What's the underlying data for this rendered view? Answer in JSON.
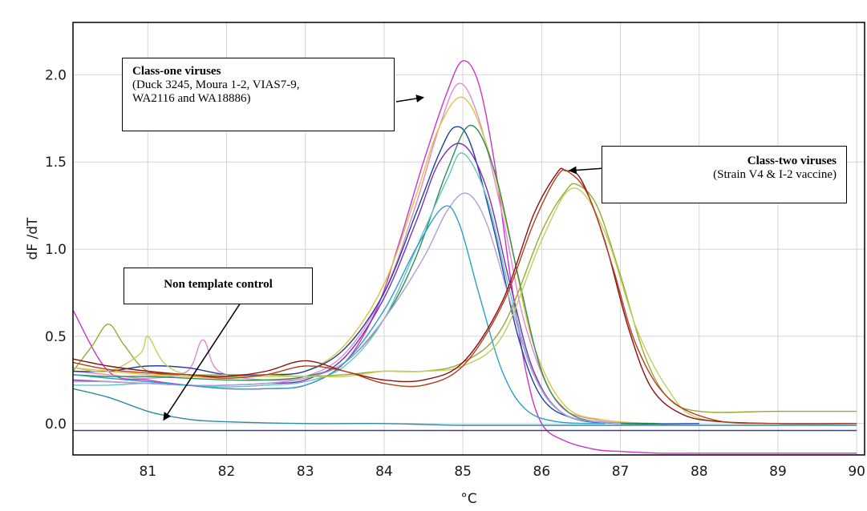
{
  "chart_data": {
    "type": "line",
    "xlabel": "°C",
    "ylabel": "dF /dT",
    "xlim": [
      80.05,
      90.1
    ],
    "ylim": [
      -0.18,
      2.3
    ],
    "xticks": [
      81,
      82,
      83,
      84,
      85,
      86,
      87,
      88,
      89,
      90
    ],
    "yticks": [
      0.0,
      0.5,
      1.0,
      1.5,
      2.0
    ],
    "xtick_labels": [
      "81",
      "82",
      "83",
      "84",
      "85",
      "86",
      "87",
      "88",
      "89",
      "90"
    ],
    "ytick_labels": [
      "0.0",
      "0.5",
      "1.0",
      "1.5",
      "2.0"
    ],
    "grid": true,
    "series": [
      {
        "color": "#cc33cc",
        "x": [
          80.05,
          80.5,
          81,
          81.5,
          82,
          82.5,
          83,
          83.5,
          83.9,
          84.2,
          84.5,
          84.8,
          85.0,
          85.2,
          85.4,
          85.6,
          85.8,
          86.0,
          86.3,
          86.7,
          87.0,
          87.5,
          88,
          89,
          90
        ],
        "y": [
          0.65,
          0.3,
          0.25,
          0.22,
          0.2,
          0.2,
          0.22,
          0.35,
          0.65,
          1.05,
          1.5,
          1.9,
          2.08,
          1.95,
          1.5,
          0.85,
          0.3,
          0.0,
          -0.1,
          -0.15,
          -0.16,
          -0.17,
          -0.17,
          -0.17,
          -0.17
        ]
      },
      {
        "color": "#e08ad4",
        "x": [
          80.05,
          80.5,
          81,
          81.5,
          81.7,
          81.9,
          82.5,
          83,
          83.5,
          84,
          84.4,
          84.7,
          84.95,
          85.2,
          85.5,
          85.8,
          86.2,
          86.7,
          87.2
        ],
        "y": [
          0.3,
          0.28,
          0.26,
          0.3,
          0.48,
          0.3,
          0.25,
          0.27,
          0.4,
          0.75,
          1.25,
          1.7,
          1.95,
          1.75,
          1.2,
          0.55,
          0.12,
          0.02,
          0.0
        ]
      },
      {
        "color": "#e0c040",
        "x": [
          80.05,
          80.5,
          81,
          81.5,
          82,
          82.5,
          83,
          83.5,
          84,
          84.4,
          84.7,
          85.0,
          85.3,
          85.6,
          85.9,
          86.3,
          86.8,
          87.5
        ],
        "y": [
          0.32,
          0.3,
          0.28,
          0.27,
          0.26,
          0.28,
          0.3,
          0.45,
          0.8,
          1.3,
          1.7,
          1.87,
          1.6,
          1.05,
          0.45,
          0.1,
          0.02,
          0.0
        ]
      },
      {
        "color": "#1f3fa0",
        "x": [
          80.05,
          80.5,
          81,
          81.5,
          82,
          82.5,
          83,
          83.5,
          84,
          84.4,
          84.7,
          84.9,
          85.1,
          85.4,
          85.7,
          86.0,
          86.4,
          87,
          88
        ],
        "y": [
          0.3,
          0.3,
          0.33,
          0.32,
          0.28,
          0.28,
          0.3,
          0.43,
          0.75,
          1.2,
          1.55,
          1.7,
          1.6,
          1.1,
          0.5,
          0.15,
          0.03,
          0.0,
          0.0
        ]
      },
      {
        "color": "#2e8b57",
        "x": [
          80.05,
          80.5,
          81,
          81.5,
          82,
          82.5,
          83,
          83.5,
          84,
          84.4,
          84.8,
          85.1,
          85.4,
          85.7,
          86.0,
          86.3,
          86.7,
          87.5
        ],
        "y": [
          0.28,
          0.27,
          0.27,
          0.26,
          0.25,
          0.25,
          0.27,
          0.35,
          0.6,
          0.95,
          1.45,
          1.71,
          1.45,
          0.85,
          0.3,
          0.08,
          0.01,
          0.0
        ]
      },
      {
        "color": "#7a2fb0",
        "x": [
          80.05,
          80.5,
          81,
          81.5,
          82,
          82.5,
          83,
          83.5,
          84,
          84.4,
          84.7,
          85.0,
          85.3,
          85.6,
          85.9,
          86.3,
          87
        ],
        "y": [
          0.25,
          0.24,
          0.23,
          0.22,
          0.22,
          0.23,
          0.25,
          0.38,
          0.72,
          1.15,
          1.5,
          1.6,
          1.35,
          0.8,
          0.3,
          0.05,
          0.0
        ]
      },
      {
        "color": "#66c2c2",
        "x": [
          80.05,
          80.5,
          81,
          81.5,
          82,
          82.5,
          83,
          83.5,
          84,
          84.5,
          84.8,
          85.0,
          85.3,
          85.6,
          85.9,
          86.3,
          87
        ],
        "y": [
          0.22,
          0.22,
          0.23,
          0.22,
          0.21,
          0.22,
          0.24,
          0.33,
          0.6,
          1.1,
          1.4,
          1.55,
          1.3,
          0.75,
          0.28,
          0.05,
          0.0
        ]
      },
      {
        "color": "#b0a0d8",
        "x": [
          80.05,
          80.5,
          81,
          81.5,
          82,
          82.5,
          83,
          83.5,
          84,
          84.5,
          84.8,
          85.05,
          85.3,
          85.6,
          85.9,
          86.3,
          87
        ],
        "y": [
          0.24,
          0.24,
          0.23,
          0.22,
          0.22,
          0.23,
          0.26,
          0.35,
          0.6,
          0.95,
          1.22,
          1.32,
          1.15,
          0.7,
          0.28,
          0.05,
          0.0
        ]
      },
      {
        "color": "#2aa0c8",
        "x": [
          80.05,
          80.5,
          81,
          81.5,
          82,
          82.5,
          83,
          83.5,
          84,
          84.4,
          84.75,
          84.95,
          85.2,
          85.5,
          85.8,
          86.2,
          86.8
        ],
        "y": [
          0.28,
          0.26,
          0.24,
          0.22,
          0.2,
          0.2,
          0.22,
          0.35,
          0.65,
          1.0,
          1.24,
          1.15,
          0.75,
          0.3,
          0.08,
          0.01,
          0.0
        ]
      },
      {
        "color": "#9aa830",
        "x": [
          80.05,
          80.3,
          80.5,
          80.7,
          81,
          81.5,
          82,
          82.5,
          83,
          83.5,
          84,
          84.5,
          85,
          85.5,
          86,
          86.3,
          86.45,
          86.7,
          87,
          87.3,
          87.6,
          88,
          89,
          90
        ],
        "y": [
          0.3,
          0.45,
          0.57,
          0.45,
          0.3,
          0.28,
          0.28,
          0.28,
          0.27,
          0.28,
          0.3,
          0.3,
          0.35,
          0.55,
          1.1,
          1.33,
          1.37,
          1.25,
          0.85,
          0.4,
          0.15,
          0.07,
          0.07,
          0.07
        ]
      },
      {
        "color": "#c0d060",
        "x": [
          80.05,
          80.5,
          80.9,
          81.0,
          81.2,
          81.5,
          82,
          82.5,
          83,
          83.5,
          84,
          84.5,
          85,
          85.5,
          86,
          86.4,
          86.8,
          87.2,
          87.6,
          88,
          89,
          90
        ],
        "y": [
          0.32,
          0.3,
          0.4,
          0.5,
          0.35,
          0.28,
          0.27,
          0.27,
          0.27,
          0.27,
          0.3,
          0.3,
          0.33,
          0.5,
          1.05,
          1.35,
          1.1,
          0.55,
          0.2,
          0.03,
          0.0,
          0.0
        ]
      },
      {
        "color": "#8b1010",
        "x": [
          80.05,
          80.5,
          81,
          81.5,
          82,
          82.5,
          83,
          83.5,
          84,
          84.5,
          85,
          85.5,
          85.9,
          86.2,
          86.3,
          86.5,
          86.8,
          87.1,
          87.4,
          87.8,
          88.3,
          89,
          90
        ],
        "y": [
          0.37,
          0.33,
          0.3,
          0.28,
          0.27,
          0.3,
          0.36,
          0.3,
          0.25,
          0.25,
          0.35,
          0.7,
          1.2,
          1.44,
          1.45,
          1.4,
          1.05,
          0.55,
          0.2,
          0.05,
          0.01,
          0.0,
          0.0
        ]
      },
      {
        "color": "#b04020",
        "x": [
          80.05,
          80.5,
          81,
          81.5,
          82,
          82.5,
          83,
          83.5,
          84,
          84.5,
          85,
          85.5,
          85.9,
          86.2,
          86.35,
          86.6,
          86.9,
          87.2,
          87.6,
          88.2,
          89,
          90
        ],
        "y": [
          0.35,
          0.31,
          0.29,
          0.28,
          0.26,
          0.28,
          0.33,
          0.3,
          0.23,
          0.22,
          0.33,
          0.68,
          1.15,
          1.42,
          1.44,
          1.3,
          0.9,
          0.45,
          0.15,
          0.02,
          0.0,
          0.0
        ]
      },
      {
        "color": "#2a8aa8",
        "x": [
          80.05,
          80.5,
          81,
          81.3,
          81.6,
          82,
          83,
          84,
          85,
          86,
          87,
          88,
          89,
          90
        ],
        "y": [
          0.2,
          0.15,
          0.07,
          0.04,
          0.02,
          0.01,
          0.0,
          0.0,
          -0.01,
          -0.01,
          -0.01,
          -0.01,
          -0.01,
          -0.01
        ]
      },
      {
        "color": "#3a3a9a",
        "x": [
          80.05,
          81,
          82,
          83,
          84,
          85,
          86,
          87,
          88,
          89,
          90
        ],
        "y": [
          -0.04,
          -0.04,
          -0.04,
          -0.04,
          -0.04,
          -0.04,
          -0.04,
          -0.04,
          -0.04,
          -0.04,
          -0.04
        ]
      }
    ],
    "annotations": [
      {
        "title": "Class-one viruses",
        "text": "(Duck 3245, Moura 1-2, VIAS7-9, WA2116 and WA18886)",
        "lines": [
          "(Duck 3245, Moura 1-2, VIAS7-9,",
          "WA2116 and WA18886)"
        ],
        "arrow_to": [
          84.5,
          1.87
        ]
      },
      {
        "title": "Class-two viruses",
        "text": "(Strain V4 & I-2 vaccine)",
        "arrow_to": [
          86.35,
          1.45
        ]
      },
      {
        "title": "Non template control",
        "arrow_to": [
          81.2,
          0.02
        ]
      }
    ]
  }
}
